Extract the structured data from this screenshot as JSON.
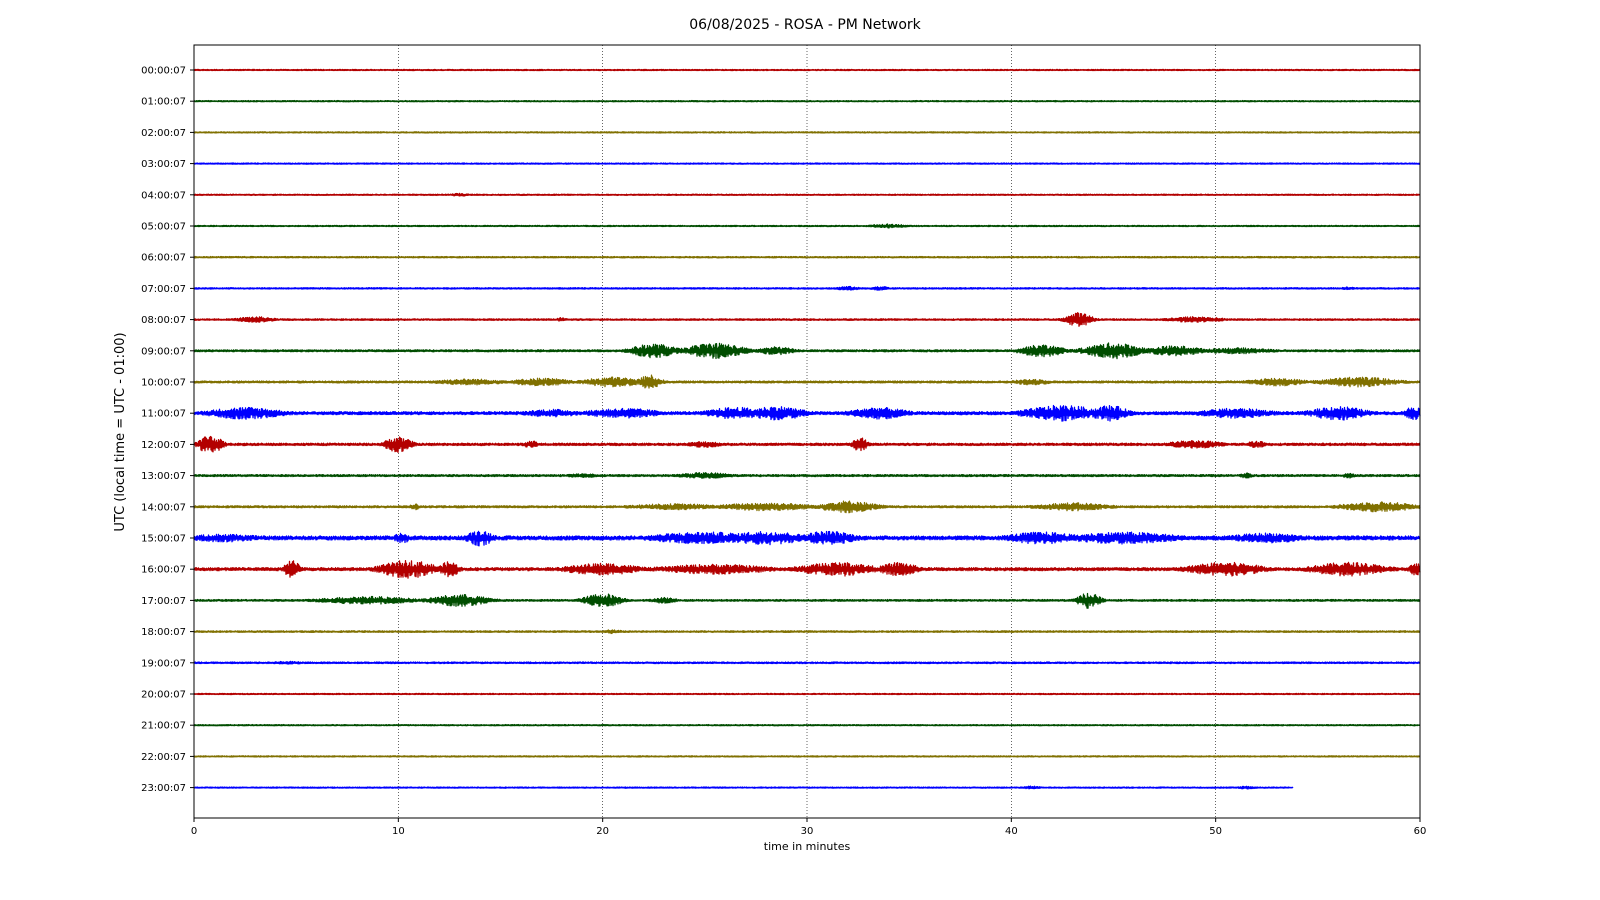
{
  "chart_data": {
    "type": "line",
    "title": "06/08/2025 - ROSA - PM Network",
    "xlabel": "time in minutes",
    "ylabel": "UTC (local time = UTC - 01:00)",
    "xlim": [
      0,
      60
    ],
    "xticks": [
      "0",
      "10",
      "20",
      "30",
      "40",
      "50",
      "60"
    ],
    "grid": "vertical dotted lines at each x tick",
    "colors": [
      "#b30000",
      "#004d00",
      "#807000",
      "#0000ff"
    ],
    "series": [
      {
        "hour": "00:00:07",
        "color": "#b30000",
        "end_minute": 60,
        "noise": 0.6,
        "bursts": []
      },
      {
        "hour": "01:00:07",
        "color": "#004d00",
        "end_minute": 60,
        "noise": 0.6,
        "bursts": []
      },
      {
        "hour": "02:00:07",
        "color": "#807000",
        "end_minute": 60,
        "noise": 0.6,
        "bursts": []
      },
      {
        "hour": "03:00:07",
        "color": "#0000ff",
        "end_minute": 60,
        "noise": 0.6,
        "bursts": []
      },
      {
        "hour": "04:00:07",
        "color": "#b30000",
        "end_minute": 60,
        "noise": 0.6,
        "bursts": [
          [
            13,
            0.5,
            1.5
          ]
        ]
      },
      {
        "hour": "05:00:07",
        "color": "#004d00",
        "end_minute": 60,
        "noise": 0.6,
        "bursts": [
          [
            34,
            1,
            2
          ]
        ]
      },
      {
        "hour": "06:00:07",
        "color": "#807000",
        "end_minute": 60,
        "noise": 0.7,
        "bursts": []
      },
      {
        "hour": "07:00:07",
        "color": "#0000ff",
        "end_minute": 60,
        "noise": 0.7,
        "bursts": [
          [
            32,
            0.6,
            2
          ],
          [
            33.6,
            0.5,
            2
          ],
          [
            56.5,
            0.4,
            1.5
          ]
        ]
      },
      {
        "hour": "08:00:07",
        "color": "#b30000",
        "end_minute": 60,
        "noise": 0.8,
        "bursts": [
          [
            3,
            1,
            3
          ],
          [
            18,
            0.3,
            2
          ],
          [
            43.3,
            0.7,
            7
          ],
          [
            49,
            1.5,
            3
          ]
        ]
      },
      {
        "hour": "09:00:07",
        "color": "#004d00",
        "end_minute": 60,
        "noise": 1.0,
        "bursts": [
          [
            22.5,
            1.2,
            7
          ],
          [
            25.5,
            1.5,
            8
          ],
          [
            28.5,
            1,
            4
          ],
          [
            41.5,
            1.2,
            6
          ],
          [
            45,
            1.5,
            8
          ],
          [
            48,
            1.5,
            5
          ],
          [
            51,
            2,
            3
          ]
        ]
      },
      {
        "hour": "10:00:07",
        "color": "#807000",
        "end_minute": 60,
        "noise": 1.0,
        "bursts": [
          [
            13.5,
            2,
            3
          ],
          [
            17,
            1.5,
            4
          ],
          [
            20.5,
            1.5,
            5
          ],
          [
            22.3,
            0.6,
            7
          ],
          [
            41,
            1,
            3
          ],
          [
            53,
            1.5,
            4
          ],
          [
            57,
            2,
            5
          ]
        ]
      },
      {
        "hour": "11:00:07",
        "color": "#0000ff",
        "end_minute": 60,
        "noise": 1.5,
        "bursts": [
          [
            2.5,
            2,
            6
          ],
          [
            17.5,
            1.5,
            4
          ],
          [
            21,
            2,
            5
          ],
          [
            26.5,
            1.5,
            6
          ],
          [
            28.5,
            1.5,
            7
          ],
          [
            33.5,
            1.5,
            6
          ],
          [
            42.5,
            2,
            8
          ],
          [
            44.8,
            1,
            8
          ],
          [
            51,
            2,
            5
          ],
          [
            56,
            1.5,
            7
          ],
          [
            59.7,
            0.5,
            7
          ]
        ]
      },
      {
        "hour": "12:00:07",
        "color": "#b30000",
        "end_minute": 60,
        "noise": 1.2,
        "bursts": [
          [
            0.8,
            0.6,
            10
          ],
          [
            10,
            0.7,
            8
          ],
          [
            16.5,
            0.4,
            4
          ],
          [
            25,
            1,
            3
          ],
          [
            32.6,
            0.4,
            7
          ],
          [
            49,
            1.5,
            4
          ],
          [
            52,
            0.5,
            4
          ]
        ]
      },
      {
        "hour": "13:00:07",
        "color": "#004d00",
        "end_minute": 60,
        "noise": 1.0,
        "bursts": [
          [
            19,
            1,
            2
          ],
          [
            25,
            1.5,
            3
          ],
          [
            51.5,
            0.3,
            3
          ],
          [
            56.5,
            0.3,
            3
          ]
        ]
      },
      {
        "hour": "14:00:07",
        "color": "#807000",
        "end_minute": 60,
        "noise": 1.0,
        "bursts": [
          [
            10.8,
            0.3,
            3
          ],
          [
            23.5,
            2.5,
            3
          ],
          [
            28,
            2.5,
            4
          ],
          [
            32,
            1.5,
            6
          ],
          [
            43,
            2,
            4
          ],
          [
            58,
            2,
            5
          ]
        ]
      },
      {
        "hour": "15:00:07",
        "color": "#0000ff",
        "end_minute": 60,
        "noise": 2.0,
        "bursts": [
          [
            1.5,
            2,
            4
          ],
          [
            10.2,
            0.5,
            5
          ],
          [
            14,
            0.7,
            8
          ],
          [
            25,
            3,
            6
          ],
          [
            28,
            2,
            7
          ],
          [
            31,
            1.5,
            7
          ],
          [
            41.5,
            2,
            6
          ],
          [
            45.5,
            3,
            6
          ],
          [
            52.5,
            2,
            5
          ]
        ]
      },
      {
        "hour": "16:00:07",
        "color": "#b30000",
        "end_minute": 60,
        "noise": 1.5,
        "bursts": [
          [
            4.8,
            0.4,
            9
          ],
          [
            10.5,
            1.5,
            9
          ],
          [
            12.5,
            0.5,
            8
          ],
          [
            20,
            2,
            6
          ],
          [
            25.5,
            3,
            5
          ],
          [
            31.5,
            2,
            7
          ],
          [
            34.5,
            1,
            7
          ],
          [
            50.5,
            2,
            7
          ],
          [
            56.5,
            2,
            7
          ],
          [
            59.8,
            0.4,
            6
          ]
        ]
      },
      {
        "hour": "17:00:07",
        "color": "#004d00",
        "end_minute": 60,
        "noise": 0.9,
        "bursts": [
          [
            8.5,
            2.5,
            4
          ],
          [
            13,
            1.5,
            6
          ],
          [
            20,
            1,
            7
          ],
          [
            23,
            0.7,
            3
          ],
          [
            43.8,
            0.6,
            8
          ]
        ]
      },
      {
        "hour": "18:00:07",
        "color": "#807000",
        "end_minute": 60,
        "noise": 0.8,
        "bursts": [
          [
            20.5,
            0.5,
            2
          ]
        ]
      },
      {
        "hour": "19:00:07",
        "color": "#0000ff",
        "end_minute": 60,
        "noise": 0.8,
        "bursts": [
          [
            4.5,
            1,
            1.5
          ]
        ]
      },
      {
        "hour": "20:00:07",
        "color": "#b30000",
        "end_minute": 60,
        "noise": 0.6,
        "bursts": []
      },
      {
        "hour": "21:00:07",
        "color": "#004d00",
        "end_minute": 60,
        "noise": 0.6,
        "bursts": []
      },
      {
        "hour": "22:00:07",
        "color": "#807000",
        "end_minute": 60,
        "noise": 0.6,
        "bursts": []
      },
      {
        "hour": "23:00:07",
        "color": "#0000ff",
        "end_minute": 53.8,
        "noise": 0.6,
        "bursts": [
          [
            41,
            0.5,
            1.5
          ],
          [
            51.5,
            0.5,
            1.5
          ]
        ]
      }
    ]
  }
}
